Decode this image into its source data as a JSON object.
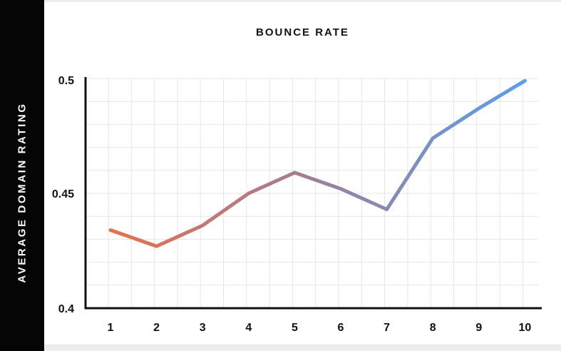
{
  "chart_data": {
    "type": "line",
    "title": "BOUNCE RATE",
    "ylabel": "AVERAGE DOMAIN RATING",
    "xlabel": "",
    "x": [
      1,
      2,
      3,
      4,
      5,
      6,
      7,
      8,
      9,
      10
    ],
    "x_tick_labels": [
      "1",
      "2",
      "3",
      "4",
      "5",
      "6",
      "7",
      "8",
      "9",
      "10"
    ],
    "y": [
      0.434,
      0.427,
      0.436,
      0.45,
      0.459,
      0.452,
      0.443,
      0.474,
      0.487,
      0.499
    ],
    "ylim": [
      0.4,
      0.5
    ],
    "y_ticks": [
      0.4,
      0.45,
      0.5
    ],
    "y_tick_labels": [
      "0.4",
      "0.45",
      "0.5"
    ],
    "grid": true,
    "line_gradient": [
      "#e8704a",
      "#9d8098",
      "#5b9ee8"
    ],
    "axis_color": "#111111",
    "grid_color": "#e6e6e6"
  }
}
